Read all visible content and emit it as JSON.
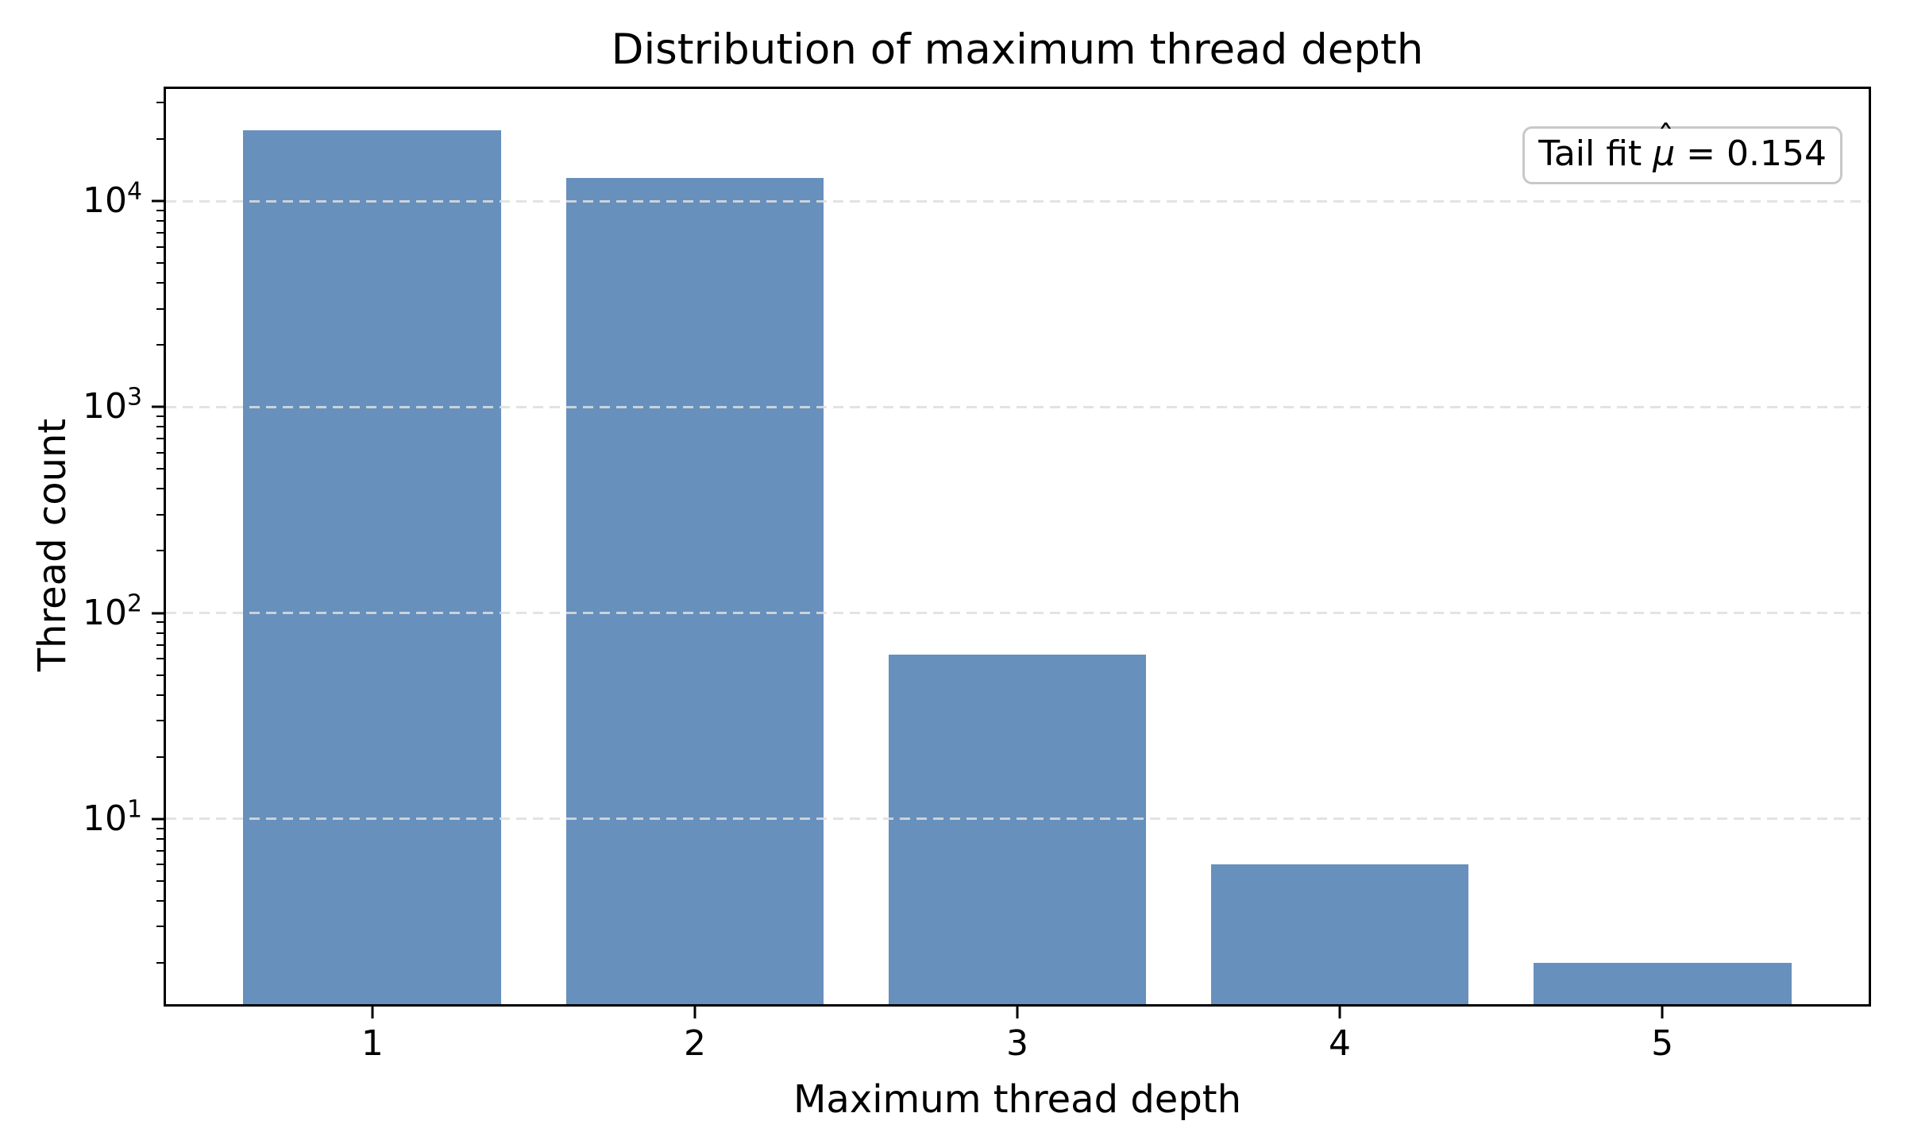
{
  "figure": {
    "background": "#ffffff"
  },
  "chart_data": {
    "type": "bar",
    "title": "Distribution of maximum thread depth",
    "xlabel": "Maximum thread depth",
    "ylabel": "Thread count",
    "categories": [
      "1",
      "2",
      "3",
      "4",
      "5"
    ],
    "values": [
      22000,
      13000,
      63,
      6,
      2
    ],
    "yscale": "log",
    "ylim": [
      1.26,
      35000
    ],
    "yticks": [
      10,
      100,
      1000,
      10000
    ],
    "ytick_base": "10",
    "ytick_exponents": [
      "1",
      "2",
      "3",
      "4"
    ],
    "bar_color": "#6790bc",
    "bar_width_fraction": 0.8,
    "x_margin_fraction": 0.05,
    "grid": "horizontal dashed at decade ticks",
    "grid_color": "#dedede",
    "axis_color": "#000000",
    "legend_position": "upper right",
    "annotation": {
      "text": "Tail fit μ̂ = 0.154",
      "prefix": "Tail fit ",
      "symbol": "μ",
      "hat": "ˆ",
      "suffix": " = 0.154"
    }
  }
}
